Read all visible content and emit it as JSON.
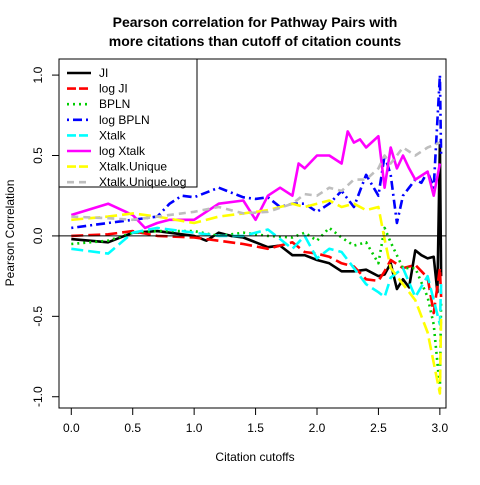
{
  "chart_data": {
    "type": "line",
    "title_lines": [
      "Pearson correlation for Pathway Pairs with",
      "more citations than cutoff of citation counts"
    ],
    "xlabel": "Citation cutoffs",
    "ylabel": "Pearson Correlation",
    "xlim": [
      -0.1,
      3.05
    ],
    "ylim": [
      -1.07,
      1.1
    ],
    "xticks": [
      0.0,
      0.5,
      1.0,
      1.5,
      2.0,
      2.5,
      3.0
    ],
    "xtick_labels": [
      "0.0",
      "0.5",
      "1.0",
      "1.5",
      "2.0",
      "2.5",
      "3.0"
    ],
    "yticks": [
      -1.0,
      -0.5,
      0.0,
      0.5,
      1.0
    ],
    "ytick_labels": [
      "-1.0",
      "-0.5",
      "0.0",
      "0.5",
      "1.0"
    ],
    "hline": 0,
    "legend_position": "top-left",
    "series": [
      {
        "name": "JI",
        "color": "#000000",
        "dash": "solid",
        "x": [
          0,
          0.3,
          0.5,
          0.7,
          1.0,
          1.1,
          1.2,
          1.3,
          1.4,
          1.5,
          1.6,
          1.7,
          1.8,
          1.9,
          2.0,
          2.1,
          2.2,
          2.3,
          2.4,
          2.5,
          2.55,
          2.6,
          2.65,
          2.7,
          2.75,
          2.8,
          2.85,
          2.9,
          2.95,
          2.98,
          3.0,
          3.01
        ],
        "y": [
          -0.02,
          -0.04,
          0.02,
          0.03,
          0.0,
          -0.03,
          0.02,
          0.0,
          -0.01,
          -0.04,
          -0.07,
          -0.06,
          -0.12,
          -0.12,
          -0.15,
          -0.17,
          -0.22,
          -0.22,
          -0.21,
          -0.25,
          -0.24,
          -0.17,
          -0.33,
          -0.27,
          -0.32,
          -0.09,
          -0.12,
          -0.14,
          -0.13,
          -0.35,
          0.58,
          -0.25
        ]
      },
      {
        "name": "log JI",
        "color": "#ff0000",
        "dash": "long",
        "x": [
          0,
          0.3,
          0.5,
          0.7,
          1.0,
          1.2,
          1.4,
          1.6,
          1.8,
          1.9,
          2.0,
          2.1,
          2.2,
          2.3,
          2.4,
          2.5,
          2.55,
          2.6,
          2.7,
          2.8,
          2.9,
          2.95,
          3.0,
          3.01
        ],
        "y": [
          0.0,
          0.01,
          0.03,
          0.0,
          -0.01,
          -0.03,
          -0.05,
          -0.08,
          -0.04,
          -0.1,
          -0.11,
          -0.13,
          -0.17,
          -0.19,
          -0.27,
          -0.28,
          -0.22,
          -0.15,
          -0.2,
          -0.18,
          -0.26,
          -0.48,
          -0.2,
          -0.38
        ]
      },
      {
        "name": "BPLN",
        "color": "#00cd00",
        "dash": "dot",
        "x": [
          0,
          0.3,
          0.5,
          0.7,
          1.0,
          1.2,
          1.4,
          1.6,
          1.8,
          1.9,
          2.0,
          2.1,
          2.2,
          2.3,
          2.4,
          2.5,
          2.55,
          2.6,
          2.7,
          2.8,
          2.9,
          2.95,
          3.0,
          3.01
        ],
        "y": [
          -0.05,
          -0.03,
          0.02,
          0.03,
          0.03,
          0.0,
          0.02,
          0.0,
          -0.01,
          0.02,
          -0.03,
          0.05,
          -0.01,
          -0.06,
          -0.04,
          -0.17,
          0.05,
          -0.04,
          -0.2,
          -0.2,
          -0.38,
          -0.55,
          -0.95,
          -0.4
        ]
      },
      {
        "name": "log BPLN",
        "color": "#0000ff",
        "dash": "dotdash",
        "x": [
          0,
          0.3,
          0.5,
          0.7,
          0.8,
          0.9,
          1.0,
          1.2,
          1.3,
          1.4,
          1.5,
          1.6,
          1.7,
          1.8,
          1.9,
          2.0,
          2.1,
          2.2,
          2.3,
          2.4,
          2.5,
          2.55,
          2.6,
          2.65,
          2.7,
          2.75,
          2.8,
          2.85,
          2.9,
          2.95,
          3.0,
          3.01
        ],
        "y": [
          0.05,
          0.08,
          0.1,
          0.12,
          0.2,
          0.25,
          0.24,
          0.3,
          0.27,
          0.24,
          0.23,
          0.24,
          0.18,
          0.2,
          0.2,
          0.15,
          0.2,
          0.28,
          0.18,
          0.38,
          0.25,
          0.5,
          0.38,
          0.08,
          0.25,
          0.3,
          0.35,
          0.33,
          0.4,
          0.3,
          1.0,
          0.5
        ]
      },
      {
        "name": "Xtalk",
        "color": "#00ffff",
        "dash": "long",
        "x": [
          0,
          0.3,
          0.5,
          0.7,
          1.0,
          1.2,
          1.4,
          1.6,
          1.8,
          1.9,
          2.0,
          2.1,
          2.2,
          2.3,
          2.4,
          2.5,
          2.55,
          2.6,
          2.7,
          2.8,
          2.9,
          3.0,
          3.01
        ],
        "y": [
          -0.08,
          -0.11,
          0.02,
          0.05,
          0.02,
          0.0,
          0.0,
          0.04,
          -0.08,
          0.0,
          -0.14,
          -0.08,
          -0.1,
          -0.2,
          -0.3,
          -0.35,
          -0.38,
          -0.26,
          -0.2,
          -0.38,
          -0.25,
          -0.55,
          -0.3
        ]
      },
      {
        "name": "log Xtalk",
        "color": "#ff00ff",
        "dash": "solid",
        "x": [
          0,
          0.3,
          0.5,
          0.6,
          0.7,
          0.8,
          1.0,
          1.2,
          1.4,
          1.5,
          1.6,
          1.7,
          1.8,
          1.85,
          1.9,
          2.0,
          2.1,
          2.2,
          2.25,
          2.3,
          2.35,
          2.4,
          2.5,
          2.55,
          2.6,
          2.65,
          2.7,
          2.75,
          2.8,
          2.9,
          2.95,
          3.0
        ],
        "y": [
          0.13,
          0.2,
          0.13,
          0.05,
          0.08,
          0.1,
          0.1,
          0.2,
          0.22,
          0.1,
          0.25,
          0.3,
          0.25,
          0.45,
          0.42,
          0.5,
          0.5,
          0.45,
          0.65,
          0.58,
          0.6,
          0.55,
          0.62,
          0.3,
          0.55,
          0.42,
          0.5,
          0.42,
          0.35,
          0.4,
          0.25,
          0.45
        ]
      },
      {
        "name": "Xtalk.Unique",
        "color": "#ffff00",
        "dash": "long",
        "x": [
          0,
          0.3,
          0.5,
          0.7,
          1.0,
          1.2,
          1.4,
          1.6,
          1.8,
          1.9,
          2.0,
          2.1,
          2.2,
          2.3,
          2.4,
          2.5,
          2.55,
          2.6,
          2.7,
          2.8,
          2.9,
          3.0,
          3.01
        ],
        "y": [
          0.1,
          0.12,
          0.14,
          0.12,
          0.08,
          0.12,
          0.14,
          0.16,
          0.2,
          0.18,
          0.2,
          0.22,
          0.18,
          0.2,
          0.16,
          0.18,
          -0.02,
          -0.2,
          -0.3,
          -0.4,
          -0.6,
          -0.98,
          -0.5
        ]
      },
      {
        "name": "Xtalk.Unique.log",
        "color": "#bebebe",
        "dash": "dash",
        "x": [
          0,
          0.3,
          0.5,
          0.7,
          1.0,
          1.2,
          1.4,
          1.6,
          1.8,
          1.9,
          2.0,
          2.1,
          2.2,
          2.3,
          2.4,
          2.5,
          2.55,
          2.6,
          2.7,
          2.8,
          2.9,
          3.0
        ],
        "y": [
          0.12,
          0.11,
          0.1,
          0.12,
          0.15,
          0.18,
          0.14,
          0.15,
          0.2,
          0.26,
          0.25,
          0.3,
          0.28,
          0.35,
          0.35,
          0.42,
          0.5,
          0.45,
          0.55,
          0.5,
          0.55,
          0.58
        ]
      }
    ]
  }
}
